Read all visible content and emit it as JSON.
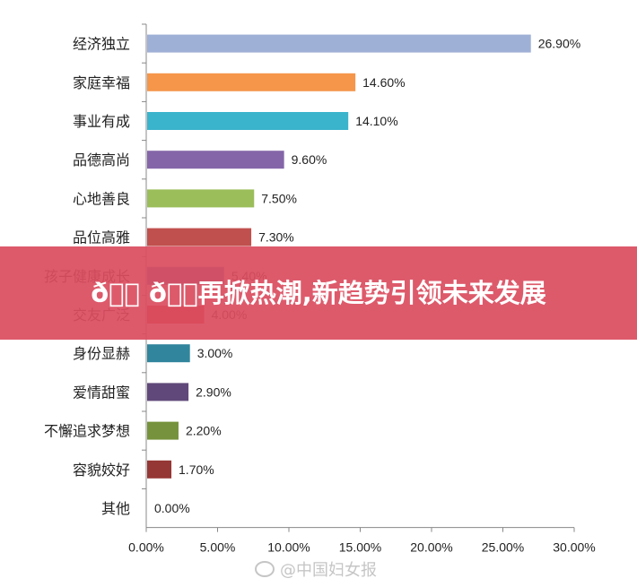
{
  "chart_data": {
    "type": "bar",
    "orientation": "horizontal",
    "categories": [
      "经济独立",
      "家庭幸福",
      "事业有成",
      "品德高尚",
      "心地善良",
      "品位高雅",
      "孩子健康成长",
      "交友广泛",
      "身份显赫",
      "爱情甜蜜",
      "不懈追求梦想",
      "容貌姣好",
      "其他"
    ],
    "values": [
      26.9,
      14.6,
      14.1,
      9.6,
      7.5,
      7.3,
      5.4,
      4.0,
      3.0,
      2.9,
      2.2,
      1.7,
      0.0
    ],
    "value_labels": [
      "26.90%",
      "14.60%",
      "14.10%",
      "9.60%",
      "7.50%",
      "7.30%",
      "5.40%",
      "4.00%",
      "3.00%",
      "2.90%",
      "2.20%",
      "1.70%",
      "0.00%"
    ],
    "colors": [
      "#9fb0d6",
      "#f5964a",
      "#3ab3cc",
      "#8466a8",
      "#9bbd5a",
      "#c0504d",
      "#4f81bd",
      "#d0342c",
      "#31859c",
      "#60497a",
      "#76923c",
      "#953735",
      "#4f81bd"
    ],
    "xlim": [
      0,
      30
    ],
    "xticks": [
      "0.00%",
      "5.00%",
      "10.00%",
      "15.00%",
      "20.00%",
      "25.00%",
      "30.00%"
    ],
    "grid": false,
    "legend": "none"
  },
  "banner": {
    "text": "ð🏻🏻 ð🏻🏻再掀热潮,新趋势引领未来发展"
  },
  "watermark": {
    "text": "@中国妇女报"
  }
}
